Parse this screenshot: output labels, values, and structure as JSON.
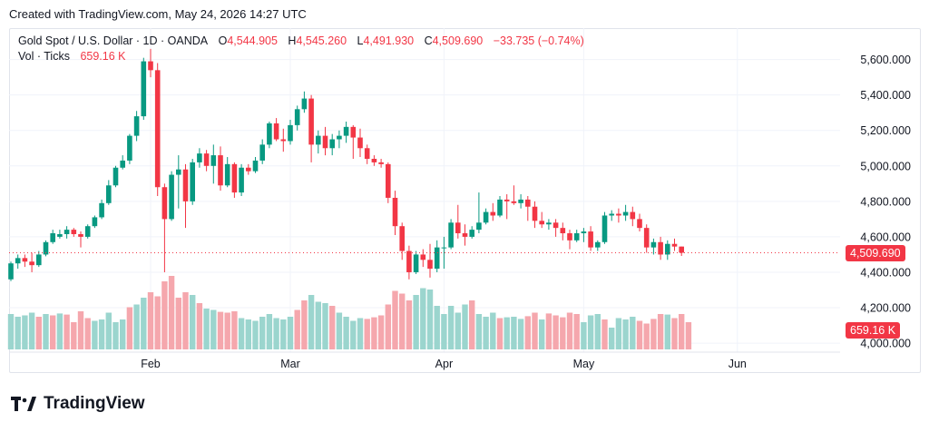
{
  "header": {
    "created_text": "Created with TradingView.com, May 24, 2026 14:27 UTC"
  },
  "legend": {
    "symbol": "Gold Spot / U.S. Dollar · 1D · OANDA",
    "o_label": "O",
    "o_value": "4,544.905",
    "h_label": "H",
    "h_value": "4,545.260",
    "l_label": "L",
    "l_value": "4,491.930",
    "c_label": "C",
    "c_value": "4,509.690",
    "change": "−33.735 (−0.74%)",
    "vol_label": "Vol · Ticks",
    "vol_value": "659.16 K"
  },
  "price_tag": {
    "value": "4,509.690",
    "color": "#f23645"
  },
  "volume_tag": {
    "value": "659.16 K",
    "color": "#f23645"
  },
  "colors": {
    "up": "#089981",
    "down": "#f23645",
    "up_vol": "#9bd5ce",
    "down_vol": "#f5a7ad",
    "grid": "#f0f3fa"
  },
  "footer": {
    "logo_text": "TradingView"
  },
  "chart_data": {
    "type": "candlestick",
    "title": "Gold Spot / U.S. Dollar · 1D · OANDA",
    "y_ticks": [
      "4,000.000",
      "4,200.000",
      "4,400.000",
      "4,600.000",
      "4,800.000",
      "5,000.000",
      "5,200.000",
      "5,400.000",
      "5,600.000"
    ],
    "y_tick_values": [
      4000,
      4200,
      4400,
      4600,
      4800,
      5000,
      5200,
      5400,
      5600
    ],
    "ylim": [
      3980,
      5680
    ],
    "x_labels": [
      {
        "label": "Feb",
        "index": 20
      },
      {
        "label": "Mar",
        "index": 40
      },
      {
        "label": "Apr",
        "index": 62
      },
      {
        "label": "May",
        "index": 82
      },
      {
        "label": "Jun",
        "index": 104
      }
    ],
    "last_close": 4509.69,
    "candles": [
      [
        4360,
        4460,
        4350,
        4450
      ],
      [
        4450,
        4500,
        4420,
        4480
      ],
      [
        4480,
        4500,
        4430,
        4460
      ],
      [
        4460,
        4510,
        4400,
        4440
      ],
      [
        4440,
        4520,
        4430,
        4500
      ],
      [
        4500,
        4580,
        4490,
        4570
      ],
      [
        4570,
        4640,
        4560,
        4620
      ],
      [
        4600,
        4640,
        4590,
        4615
      ],
      [
        4615,
        4660,
        4590,
        4640
      ],
      [
        4640,
        4650,
        4600,
        4615
      ],
      [
        4615,
        4630,
        4540,
        4600
      ],
      [
        4600,
        4670,
        4590,
        4660
      ],
      [
        4660,
        4720,
        4650,
        4710
      ],
      [
        4710,
        4810,
        4700,
        4790
      ],
      [
        4790,
        4920,
        4780,
        4890
      ],
      [
        4890,
        5000,
        4880,
        4990
      ],
      [
        4990,
        5060,
        4980,
        5030
      ],
      [
        5030,
        5180,
        5010,
        5170
      ],
      [
        5170,
        5310,
        5140,
        5280
      ],
      [
        5280,
        5610,
        5260,
        5590
      ],
      [
        5590,
        5660,
        5500,
        5540
      ],
      [
        5540,
        5580,
        4830,
        4880
      ],
      [
        4880,
        4900,
        4400,
        4700
      ],
      [
        4700,
        4970,
        4690,
        4950
      ],
      [
        4950,
        5060,
        4760,
        4980
      ],
      [
        4980,
        5010,
        4650,
        4800
      ],
      [
        4800,
        5040,
        4780,
        5020
      ],
      [
        5020,
        5100,
        4990,
        5070
      ],
      [
        5070,
        5090,
        4970,
        5000
      ],
      [
        5000,
        5120,
        4900,
        5060
      ],
      [
        5060,
        5110,
        4860,
        4890
      ],
      [
        4890,
        5050,
        4880,
        5010
      ],
      [
        5010,
        5020,
        4820,
        4850
      ],
      [
        4850,
        5010,
        4830,
        4990
      ],
      [
        4990,
        5010,
        4950,
        4970
      ],
      [
        4970,
        5050,
        4960,
        5030
      ],
      [
        5030,
        5150,
        5010,
        5120
      ],
      [
        5120,
        5250,
        5100,
        5240
      ],
      [
        5240,
        5270,
        5140,
        5150
      ],
      [
        5150,
        5210,
        5080,
        5140
      ],
      [
        5140,
        5260,
        5120,
        5230
      ],
      [
        5230,
        5340,
        5200,
        5320
      ],
      [
        5320,
        5420,
        5300,
        5380
      ],
      [
        5380,
        5400,
        5020,
        5120
      ],
      [
        5120,
        5200,
        5070,
        5170
      ],
      [
        5170,
        5220,
        5060,
        5100
      ],
      [
        5100,
        5180,
        5060,
        5150
      ],
      [
        5150,
        5200,
        5100,
        5170
      ],
      [
        5170,
        5250,
        5130,
        5220
      ],
      [
        5220,
        5230,
        5040,
        5160
      ],
      [
        5160,
        5210,
        5050,
        5100
      ],
      [
        5100,
        5120,
        5010,
        5040
      ],
      [
        5040,
        5060,
        5000,
        5020
      ],
      [
        5020,
        5040,
        4990,
        5010
      ],
      [
        5010,
        5020,
        4790,
        4820
      ],
      [
        4820,
        4860,
        4610,
        4660
      ],
      [
        4660,
        4680,
        4470,
        4520
      ],
      [
        4520,
        4550,
        4360,
        4400
      ],
      [
        4400,
        4520,
        4390,
        4500
      ],
      [
        4500,
        4530,
        4430,
        4470
      ],
      [
        4470,
        4560,
        4370,
        4420
      ],
      [
        4420,
        4580,
        4400,
        4540
      ],
      [
        4540,
        4600,
        4420,
        4540
      ],
      [
        4540,
        4700,
        4530,
        4680
      ],
      [
        4680,
        4780,
        4590,
        4620
      ],
      [
        4620,
        4670,
        4550,
        4600
      ],
      [
        4600,
        4660,
        4590,
        4640
      ],
      [
        4640,
        4850,
        4620,
        4680
      ],
      [
        4680,
        4760,
        4670,
        4740
      ],
      [
        4740,
        4790,
        4690,
        4720
      ],
      [
        4720,
        4830,
        4710,
        4810
      ],
      [
        4810,
        4840,
        4700,
        4800
      ],
      [
        4800,
        4890,
        4780,
        4790
      ],
      [
        4790,
        4840,
        4760,
        4810
      ],
      [
        4810,
        4830,
        4690,
        4770
      ],
      [
        4770,
        4800,
        4650,
        4690
      ],
      [
        4690,
        4740,
        4650,
        4670
      ],
      [
        4670,
        4700,
        4640,
        4680
      ],
      [
        4680,
        4700,
        4600,
        4650
      ],
      [
        4650,
        4680,
        4580,
        4620
      ],
      [
        4620,
        4640,
        4530,
        4580
      ],
      [
        4580,
        4640,
        4570,
        4620
      ],
      [
        4620,
        4650,
        4570,
        4630
      ],
      [
        4630,
        4660,
        4520,
        4540
      ],
      [
        4540,
        4580,
        4520,
        4570
      ],
      [
        4570,
        4740,
        4560,
        4720
      ],
      [
        4720,
        4750,
        4690,
        4730
      ],
      [
        4730,
        4760,
        4680,
        4720
      ],
      [
        4720,
        4780,
        4690,
        4740
      ],
      [
        4740,
        4770,
        4660,
        4700
      ],
      [
        4700,
        4730,
        4630,
        4650
      ],
      [
        4650,
        4670,
        4510,
        4540
      ],
      [
        4540,
        4590,
        4500,
        4570
      ],
      [
        4570,
        4600,
        4470,
        4500
      ],
      [
        4500,
        4580,
        4470,
        4560
      ],
      [
        4560,
        4590,
        4520,
        4545
      ],
      [
        4545,
        4545,
        4492,
        4510
      ]
    ],
    "volume": [
      [
        130,
        1
      ],
      [
        120,
        1
      ],
      [
        125,
        1
      ],
      [
        135,
        1
      ],
      [
        120,
        0
      ],
      [
        130,
        1
      ],
      [
        125,
        0
      ],
      [
        132,
        1
      ],
      [
        128,
        0
      ],
      [
        100,
        0
      ],
      [
        140,
        0
      ],
      [
        115,
        0
      ],
      [
        105,
        1
      ],
      [
        110,
        1
      ],
      [
        135,
        1
      ],
      [
        100,
        1
      ],
      [
        110,
        1
      ],
      [
        155,
        0
      ],
      [
        165,
        1
      ],
      [
        190,
        1
      ],
      [
        210,
        0
      ],
      [
        195,
        0
      ],
      [
        250,
        0
      ],
      [
        270,
        0
      ],
      [
        190,
        0
      ],
      [
        210,
        0
      ],
      [
        200,
        1
      ],
      [
        170,
        0
      ],
      [
        150,
        1
      ],
      [
        145,
        1
      ],
      [
        138,
        0
      ],
      [
        135,
        0
      ],
      [
        140,
        0
      ],
      [
        115,
        1
      ],
      [
        110,
        1
      ],
      [
        105,
        1
      ],
      [
        120,
        1
      ],
      [
        130,
        1
      ],
      [
        115,
        1
      ],
      [
        110,
        1
      ],
      [
        120,
        1
      ],
      [
        145,
        0
      ],
      [
        180,
        0
      ],
      [
        200,
        1
      ],
      [
        175,
        1
      ],
      [
        170,
        1
      ],
      [
        160,
        0
      ],
      [
        135,
        1
      ],
      [
        120,
        1
      ],
      [
        105,
        1
      ],
      [
        115,
        1
      ],
      [
        112,
        0
      ],
      [
        118,
        0
      ],
      [
        125,
        0
      ],
      [
        165,
        0
      ],
      [
        215,
        0
      ],
      [
        205,
        0
      ],
      [
        180,
        0
      ],
      [
        200,
        1
      ],
      [
        225,
        1
      ],
      [
        220,
        1
      ],
      [
        160,
        1
      ],
      [
        130,
        1
      ],
      [
        160,
        1
      ],
      [
        135,
        1
      ],
      [
        165,
        1
      ],
      [
        180,
        0
      ],
      [
        130,
        1
      ],
      [
        120,
        1
      ],
      [
        135,
        1
      ],
      [
        115,
        0
      ],
      [
        118,
        1
      ],
      [
        120,
        1
      ],
      [
        112,
        1
      ],
      [
        122,
        0
      ],
      [
        135,
        0
      ],
      [
        110,
        1
      ],
      [
        132,
        0
      ],
      [
        125,
        0
      ],
      [
        118,
        0
      ],
      [
        135,
        0
      ],
      [
        130,
        0
      ],
      [
        100,
        1
      ],
      [
        125,
        1
      ],
      [
        130,
        1
      ],
      [
        110,
        0
      ],
      [
        80,
        1
      ],
      [
        115,
        1
      ],
      [
        110,
        1
      ],
      [
        120,
        1
      ],
      [
        105,
        0
      ],
      [
        95,
        0
      ],
      [
        112,
        0
      ],
      [
        130,
        0
      ],
      [
        128,
        1
      ],
      [
        115,
        0
      ],
      [
        130,
        0
      ],
      [
        100,
        0
      ]
    ]
  }
}
